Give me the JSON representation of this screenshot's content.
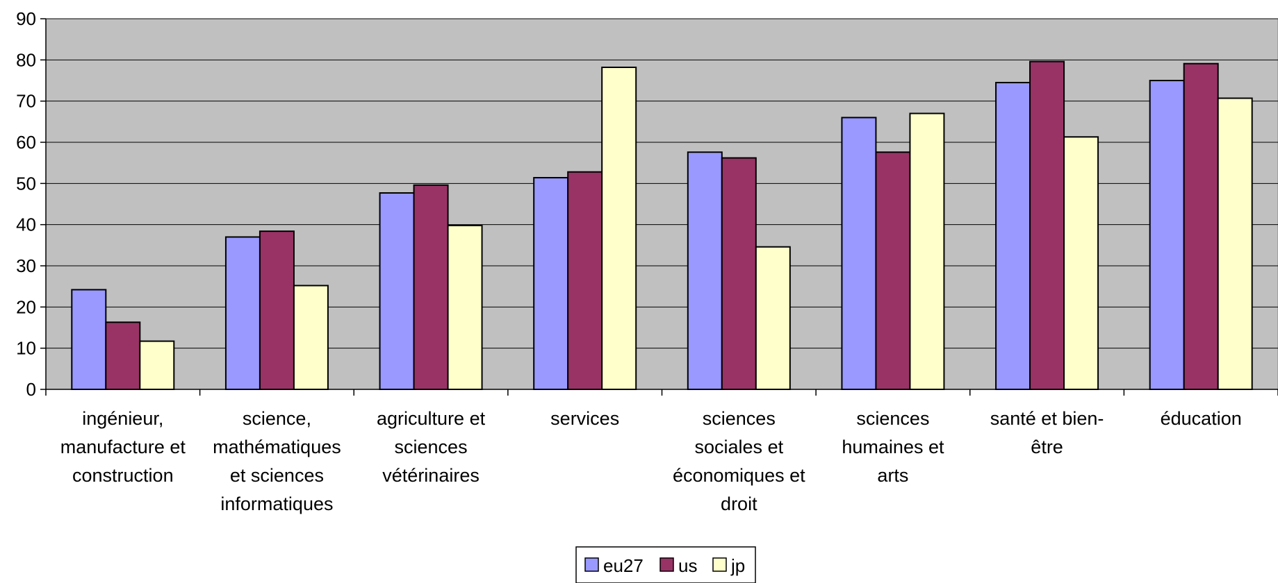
{
  "chart_data": {
    "type": "bar",
    "title": "",
    "xlabel": "",
    "ylabel": "",
    "ylim": [
      0,
      90
    ],
    "yticks": [
      "0",
      "10",
      "20",
      "30",
      "40",
      "50",
      "60",
      "70",
      "80",
      "90"
    ],
    "grid": true,
    "legend_position": "bottom-center",
    "plot_background": "#c0c0c0",
    "categories": [
      [
        "ingénieur,",
        "manufacture et",
        "construction"
      ],
      [
        "science,",
        "mathématiques",
        "et sciences",
        "informatiques"
      ],
      [
        "agriculture et",
        "sciences",
        "vétérinaires"
      ],
      [
        "services"
      ],
      [
        "sciences",
        "sociales et",
        "économiques et",
        "droit"
      ],
      [
        "sciences",
        "humaines et",
        "arts"
      ],
      [
        "santé et bien-",
        "être"
      ],
      [
        "éducation"
      ]
    ],
    "series": [
      {
        "name": "eu27",
        "color": "#9999ff",
        "values": [
          24.2,
          37.0,
          47.7,
          51.4,
          57.6,
          66.0,
          74.5,
          75.0
        ]
      },
      {
        "name": "us",
        "color": "#993366",
        "values": [
          16.3,
          38.4,
          49.6,
          52.8,
          56.2,
          57.6,
          79.6,
          79.1
        ]
      },
      {
        "name": "jp",
        "color": "#ffffcc",
        "values": [
          11.7,
          25.2,
          39.8,
          78.2,
          34.6,
          67.0,
          61.3,
          70.7
        ]
      }
    ]
  }
}
